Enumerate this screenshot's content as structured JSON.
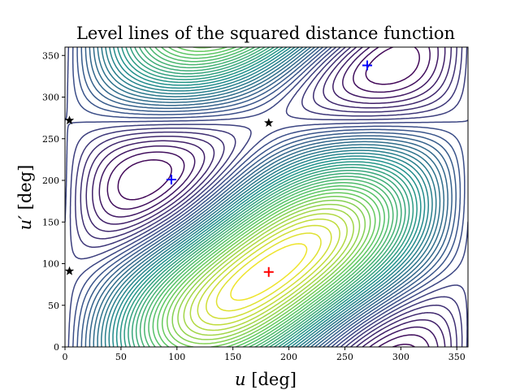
{
  "chart_data": {
    "type": "contour",
    "title": "Level lines of the squared distance function",
    "xlabel_var": "u",
    "xlabel_unit": " [deg]",
    "ylabel_var": "u′",
    "ylabel_unit": " [deg]",
    "xlim": [
      0,
      360
    ],
    "ylim": [
      0,
      360
    ],
    "xticks": [
      0,
      50,
      100,
      150,
      200,
      250,
      300,
      350
    ],
    "yticks": [
      0,
      50,
      100,
      150,
      200,
      250,
      300,
      350
    ],
    "colormap": [
      "#440154",
      "#3b528b",
      "#21918c",
      "#5ec962",
      "#fde725"
    ],
    "minimum_marker": {
      "symbol": "+",
      "color": "#ff0000",
      "x": 182,
      "y": 90
    },
    "saddle_markers": {
      "symbol": "+",
      "color": "#0000ff",
      "points": [
        [
          95,
          201
        ],
        [
          270,
          338
        ]
      ]
    },
    "critical_markers": {
      "symbol": "★",
      "color": "#000000",
      "points": [
        [
          182,
          269
        ],
        [
          4,
          272
        ],
        [
          4,
          91
        ]
      ]
    }
  }
}
